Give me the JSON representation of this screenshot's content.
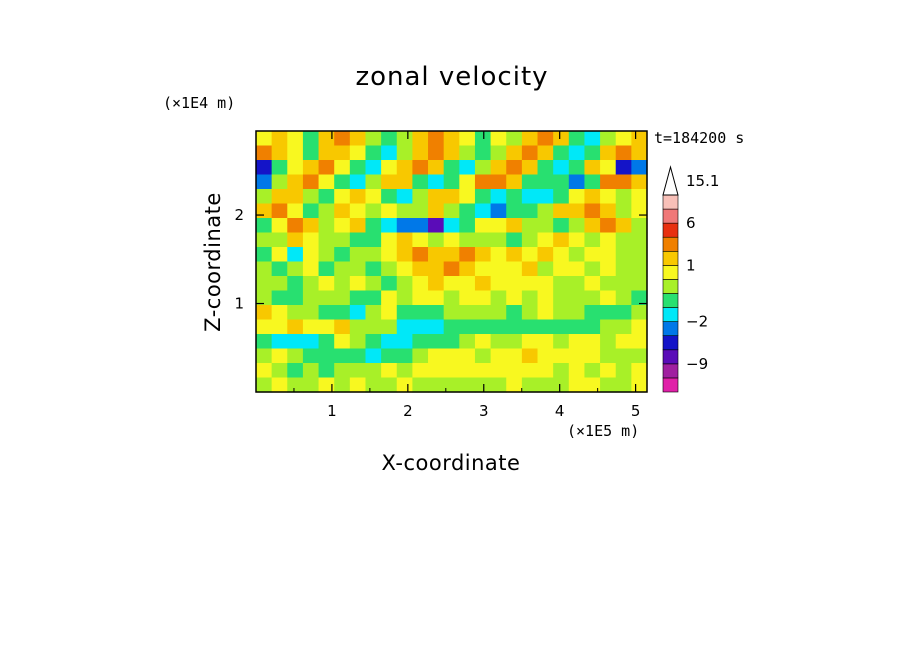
{
  "chart_data": {
    "type": "heatmap",
    "title": "zonal velocity",
    "xlabel": "X-coordinate",
    "ylabel": "Z-coordinate",
    "x_scale_label": "(×1E5 m)",
    "y_scale_label": "(×1E4 m)",
    "time_label": "t=184200 s",
    "xlim": [
      0,
      5.15
    ],
    "ylim": [
      0,
      2.95
    ],
    "x_ticks": [
      "1",
      "2",
      "3",
      "4",
      "5"
    ],
    "y_ticks": [
      "1",
      "2"
    ],
    "colorbar": {
      "extend": "max",
      "levels": [
        -15,
        -12,
        -9,
        -6,
        -4,
        -2,
        -1,
        0,
        0.5,
        1,
        2,
        3,
        6,
        9,
        12,
        15.1
      ],
      "colors": [
        "#e020a8",
        "#a020a0",
        "#5a0cb8",
        "#1414c8",
        "#0078e8",
        "#00e8f8",
        "#28e070",
        "#a8f028",
        "#f8f820",
        "#f8c800",
        "#f08000",
        "#e83010",
        "#f07878",
        "#f8c0b8"
      ],
      "labels": [
        "15.1",
        "6",
        "1",
        "−2",
        "−9"
      ]
    },
    "grid": [
      [
        0.5,
        1.2,
        0.6,
        -0.6,
        1.0,
        2.2,
        1.5,
        0.4,
        -1.0,
        0.2,
        1.0,
        2.2,
        1.6,
        0.5,
        -0.6,
        0.8,
        0.4,
        1.2,
        2.2,
        1.0,
        -0.7,
        -1.1,
        0.3,
        0.6,
        1.4
      ],
      [
        2.0,
        1.4,
        0.5,
        -0.3,
        1.2,
        1.8,
        0.9,
        -0.6,
        -1.3,
        0.4,
        1.6,
        2.4,
        1.0,
        0.0,
        -0.8,
        0.4,
        1.8,
        2.8,
        1.2,
        -0.5,
        -1.3,
        -0.5,
        1.6,
        2.4,
        1.0
      ],
      [
        -5.0,
        -0.8,
        0.5,
        1.6,
        2.2,
        0.6,
        -0.8,
        -1.1,
        0.6,
        1.6,
        2.6,
        1.4,
        -0.2,
        -1.2,
        0.4,
        1.8,
        2.6,
        1.2,
        -0.4,
        -1.4,
        -0.2,
        1.2,
        0.8,
        -6.0,
        -3.5
      ],
      [
        -3.5,
        0.4,
        1.8,
        2.0,
        0.8,
        -0.6,
        -1.2,
        0.4,
        1.6,
        1.2,
        -0.6,
        -1.6,
        -0.8,
        0.8,
        2.2,
        2.8,
        1.4,
        -0.2,
        -1.0,
        -0.6,
        -3.5,
        -0.4,
        2.0,
        2.4,
        1.2
      ],
      [
        0.4,
        1.8,
        1.4,
        0.2,
        -0.4,
        0.6,
        1.4,
        0.8,
        -0.4,
        -1.2,
        0.2,
        1.2,
        1.6,
        0.8,
        -0.6,
        -1.2,
        -0.6,
        -1.4,
        -2.0,
        -0.8,
        0.6,
        1.2,
        0.6,
        0.2,
        0.6
      ],
      [
        1.6,
        2.2,
        0.8,
        -0.4,
        0.2,
        1.4,
        0.8,
        0.2,
        0.9,
        0.4,
        0.2,
        1.0,
        0.4,
        -0.6,
        -1.6,
        -2.2,
        -0.8,
        -0.4,
        0.4,
        1.0,
        1.4,
        2.0,
        1.2,
        0.2,
        0.6
      ],
      [
        -0.6,
        0.8,
        2.0,
        1.2,
        0.4,
        0.8,
        1.2,
        -0.6,
        -1.4,
        -2.4,
        -3.0,
        -6.5,
        -1.6,
        -0.4,
        0.8,
        0.8,
        1.0,
        0.4,
        0.0,
        -0.6,
        0.2,
        1.6,
        2.2,
        1.0,
        0.4
      ],
      [
        0.2,
        0.0,
        1.2,
        0.6,
        0.0,
        0.4,
        -0.6,
        -0.4,
        0.6,
        1.4,
        0.8,
        0.2,
        0.6,
        0.4,
        0.2,
        0.0,
        -0.4,
        0.2,
        0.6,
        1.0,
        0.6,
        0.4,
        0.8,
        0.4,
        0.0
      ],
      [
        -0.8,
        0.6,
        -1.2,
        0.8,
        0.2,
        -0.4,
        0.2,
        0.4,
        0.6,
        1.2,
        2.2,
        1.4,
        1.0,
        2.6,
        1.2,
        0.6,
        1.2,
        0.8,
        1.4,
        0.6,
        0.4,
        0.6,
        0.8,
        0.4,
        0.2
      ],
      [
        0.2,
        -0.4,
        0.4,
        0.6,
        -0.4,
        0.2,
        0.4,
        -0.2,
        0.4,
        0.8,
        1.2,
        1.6,
        2.6,
        1.4,
        0.8,
        0.6,
        0.8,
        1.0,
        0.4,
        0.8,
        0.6,
        0.4,
        0.6,
        0.2,
        0.0
      ],
      [
        0.4,
        0.2,
        -0.2,
        0.2,
        0.6,
        0.4,
        0.6,
        0.2,
        -0.6,
        0.4,
        0.8,
        1.2,
        0.8,
        0.6,
        1.2,
        0.8,
        0.6,
        0.8,
        0.6,
        0.4,
        0.2,
        0.6,
        0.4,
        0.2,
        0.4
      ],
      [
        0.0,
        -0.6,
        -0.4,
        0.2,
        0.4,
        0.0,
        -0.6,
        -0.4,
        0.8,
        0.4,
        0.6,
        0.6,
        0.4,
        0.8,
        0.6,
        0.4,
        0.6,
        0.4,
        0.8,
        0.2,
        0.0,
        0.2,
        0.6,
        0.0,
        -0.4
      ],
      [
        1.0,
        0.6,
        0.4,
        0.0,
        -0.4,
        -0.8,
        -1.4,
        0.4,
        0.6,
        -0.4,
        -0.6,
        -0.2,
        0.2,
        0.4,
        0.2,
        0.0,
        -0.2,
        0.4,
        0.6,
        0.4,
        0.2,
        -0.2,
        -0.4,
        -0.2,
        0.0
      ],
      [
        0.6,
        0.8,
        1.2,
        0.6,
        0.8,
        1.0,
        0.4,
        0.2,
        0.0,
        -1.4,
        -1.6,
        -1.2,
        -0.8,
        -0.6,
        -0.4,
        -0.6,
        -0.8,
        -0.4,
        -0.2,
        -0.4,
        -0.6,
        -0.2,
        0.2,
        0.4,
        0.6
      ],
      [
        -0.6,
        -1.6,
        -1.8,
        -1.2,
        -0.4,
        0.6,
        0.4,
        -0.4,
        -1.8,
        -1.4,
        -0.8,
        -0.4,
        -0.2,
        0.4,
        0.8,
        0.4,
        0.2,
        0.6,
        0.6,
        0.4,
        0.8,
        0.6,
        0.4,
        0.6,
        0.8
      ],
      [
        0.4,
        0.6,
        0.2,
        -0.4,
        -0.6,
        -0.8,
        -0.4,
        -1.2,
        -0.6,
        -0.4,
        0.4,
        0.6,
        0.8,
        0.6,
        0.4,
        0.6,
        0.8,
        1.0,
        0.8,
        0.6,
        0.8,
        0.6,
        0.4,
        0.2,
        0.2
      ],
      [
        0.6,
        0.2,
        -0.2,
        0.4,
        -0.2,
        0.2,
        0.4,
        0.2,
        0.6,
        0.4,
        0.6,
        0.6,
        0.8,
        0.6,
        0.6,
        0.8,
        0.6,
        0.8,
        0.6,
        0.4,
        0.6,
        0.4,
        0.6,
        0.4,
        0.6
      ],
      [
        0.2,
        0.6,
        0.4,
        0.0,
        0.6,
        0.2,
        0.6,
        0.4,
        0.2,
        0.6,
        0.2,
        0.4,
        0.2,
        0.4,
        0.0,
        0.2,
        0.6,
        0.4,
        0.2,
        0.4,
        0.8,
        0.6,
        0.4,
        0.2,
        0.8
      ]
    ]
  }
}
